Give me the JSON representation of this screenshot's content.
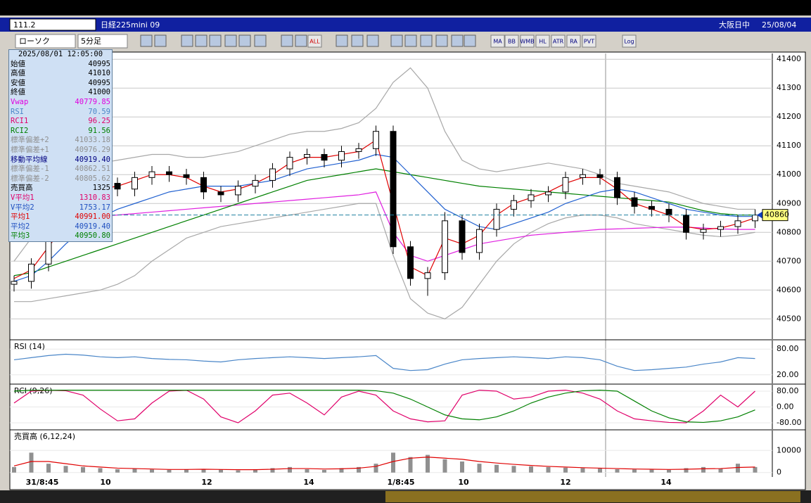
{
  "header": {
    "symbol_box": "111.2",
    "instrument": "日経225mini 09",
    "session": "大阪日中",
    "date": "25/08/04"
  },
  "toolbar": {
    "chart_style": "ローソク",
    "interval": "5分足",
    "buttons": [
      "ALL",
      "MA",
      "BB",
      "WMB",
      "HL",
      "ATR",
      "RA",
      "PVT",
      "Log"
    ]
  },
  "info_panel": {
    "datetime": "2025/08/01  12:05:00",
    "rows": [
      {
        "label": "始値",
        "value": "40995",
        "color": "#000000"
      },
      {
        "label": "高値",
        "value": "41010",
        "color": "#000000"
      },
      {
        "label": "安値",
        "value": "40995",
        "color": "#000000"
      },
      {
        "label": "終値",
        "value": "41000",
        "color": "#000000"
      },
      {
        "label": "Vwap",
        "value": "40779.85",
        "color": "#e000e0"
      },
      {
        "label": "RSI",
        "value": "70.59",
        "color": "#4a86c8"
      },
      {
        "label": "RCI1",
        "value": "96.25",
        "color": "#e0006a"
      },
      {
        "label": "RCI2",
        "value": "91.56",
        "color": "#008000"
      },
      {
        "label": "標準偏差+2",
        "value": "41033.18",
        "color": "#909090"
      },
      {
        "label": "標準偏差+1",
        "value": "40976.29",
        "color": "#909090"
      },
      {
        "label": "移動平均線",
        "value": "40919.40",
        "color": "#000080"
      },
      {
        "label": "標準偏差-1",
        "value": "40862.51",
        "color": "#909090"
      },
      {
        "label": "標準偏差-2",
        "value": "40805.62",
        "color": "#909090"
      },
      {
        "label": "売買高",
        "value": "1325",
        "color": "#000000"
      },
      {
        "label": "V平均1",
        "value": "1310.83",
        "color": "#e0006a"
      },
      {
        "label": "V平均2",
        "value": "1753.17",
        "color": "#2050c0"
      },
      {
        "label": "平均1",
        "value": "40991.00",
        "color": "#e00000"
      },
      {
        "label": "平均2",
        "value": "40919.40",
        "color": "#2050c0"
      },
      {
        "label": "平均3",
        "value": "40950.80",
        "color": "#008000"
      }
    ]
  },
  "time_axis": [
    "31/8:45",
    "10",
    "12",
    "14",
    "1/8:45",
    "10",
    "12",
    "14"
  ],
  "chart_data": [
    {
      "type": "candlestick",
      "ylim": [
        40430,
        41420
      ],
      "yticks": [
        40500,
        40600,
        40700,
        40800,
        40900,
        41000,
        41100,
        41200,
        41300,
        41400
      ],
      "grid": true,
      "last": 40860,
      "open": [
        40620,
        40630,
        40690,
        40800,
        40870,
        40940,
        40970,
        40950,
        40990,
        41010,
        41000,
        40990,
        40940,
        40930,
        40960,
        40980,
        41020,
        41060,
        41070,
        41050,
        41080,
        41090,
        41150,
        40750,
        40640,
        40660,
        40840,
        40730,
        40810,
        40880,
        40910,
        40930,
        40940,
        40990,
        41000,
        40990,
        40920,
        40890,
        40880,
        40860,
        40800,
        40810,
        40820,
        40840
      ],
      "high": [
        40650,
        40710,
        40820,
        40890,
        40960,
        40990,
        40990,
        41010,
        41030,
        41030,
        41020,
        41010,
        40960,
        40980,
        41000,
        41040,
        41080,
        41090,
        41090,
        41100,
        41110,
        41170,
        41170,
        40770,
        40680,
        40870,
        40860,
        40830,
        40900,
        40930,
        40950,
        40960,
        41010,
        41020,
        41020,
        41010,
        40940,
        40910,
        40900,
        40880,
        40830,
        40840,
        40860,
        40880
      ],
      "low": [
        40595,
        40605,
        40665,
        40775,
        40845,
        40915,
        40925,
        40925,
        40965,
        40975,
        40965,
        40915,
        40905,
        40905,
        40935,
        40955,
        40995,
        41035,
        41025,
        41025,
        41055,
        41065,
        40725,
        40615,
        40580,
        40635,
        40705,
        40705,
        40785,
        40855,
        40885,
        40905,
        40915,
        40965,
        40965,
        40895,
        40865,
        40855,
        40835,
        40775,
        40775,
        40785,
        40795,
        40815
      ],
      "close": [
        40630,
        40690,
        40800,
        40870,
        40940,
        40970,
        40950,
        40990,
        41010,
        41000,
        40990,
        40940,
        40930,
        40960,
        40980,
        41020,
        41060,
        41070,
        41050,
        41080,
        41090,
        41150,
        40750,
        40640,
        40660,
        40840,
        40730,
        40810,
        40880,
        40910,
        40930,
        40940,
        40990,
        41000,
        40990,
        40920,
        40890,
        40880,
        40860,
        40800,
        40810,
        40820,
        40840,
        40860
      ],
      "series": [
        {
          "color": "#a8a8a8",
          "values": [
            40700,
            40780,
            40900,
            40980,
            41020,
            41040,
            41050,
            41060,
            41070,
            41070,
            41060,
            41060,
            41070,
            41080,
            41100,
            41120,
            41140,
            41150,
            41150,
            41160,
            41180,
            41230,
            41320,
            41370,
            41300,
            41150,
            41050,
            41020,
            41010,
            41020,
            41030,
            41040,
            41030,
            41020,
            41000,
            40970,
            40960,
            40950,
            40940,
            40920,
            40900,
            40890,
            40880,
            40880
          ]
        },
        {
          "color": "#a8a8a8",
          "values": [
            40560,
            40560,
            40570,
            40580,
            40590,
            40600,
            40620,
            40650,
            40700,
            40740,
            40780,
            40800,
            40820,
            40830,
            40840,
            40850,
            40860,
            40870,
            40880,
            40890,
            40900,
            40900,
            40720,
            40570,
            40520,
            40500,
            40540,
            40620,
            40700,
            40760,
            40800,
            40830,
            40850,
            40860,
            40860,
            40850,
            40830,
            40820,
            40810,
            40800,
            40790,
            40785,
            40790,
            40800
          ]
        },
        {
          "color": "#e020e0",
          "values": [
            40800,
            40820,
            40830,
            40840,
            40850,
            40855,
            40860,
            40865,
            40870,
            40875,
            40880,
            40885,
            40890,
            40895,
            40900,
            40905,
            40910,
            40915,
            40920,
            40925,
            40930,
            40940,
            40800,
            40720,
            40700,
            40720,
            40740,
            40760,
            40770,
            40780,
            40790,
            40795,
            40800,
            40805,
            40810,
            40812,
            40814,
            40816,
            40818,
            40818,
            40815,
            40812,
            40810,
            40810
          ]
        },
        {
          "color": "#008000",
          "values": [
            40650,
            40660,
            40680,
            40700,
            40720,
            40740,
            40760,
            40780,
            40800,
            40820,
            40840,
            40860,
            40880,
            40900,
            40920,
            40940,
            40960,
            40980,
            40990,
            41000,
            41010,
            41020,
            41010,
            41000,
            40990,
            40980,
            40970,
            40960,
            40955,
            40950,
            40945,
            40940,
            40935,
            40930,
            40925,
            40920,
            40915,
            40910,
            40905,
            40890,
            40875,
            40865,
            40860,
            40860
          ]
        },
        {
          "color": "#2060d0",
          "values": [
            40630,
            40650,
            40700,
            40760,
            40810,
            40850,
            40880,
            40900,
            40920,
            40940,
            40950,
            40960,
            40960,
            40960,
            40970,
            40980,
            41000,
            41020,
            41030,
            41040,
            41050,
            41070,
            41060,
            41000,
            40940,
            40880,
            40850,
            40820,
            40810,
            40830,
            40850,
            40870,
            40900,
            40920,
            40940,
            40950,
            40940,
            40920,
            40900,
            40880,
            40870,
            40860,
            40855,
            40855
          ]
        },
        {
          "color": "#e00000",
          "values": [
            40640,
            40670,
            40750,
            40830,
            40900,
            40950,
            40960,
            40980,
            41000,
            41000,
            40990,
            40960,
            40940,
            40950,
            40970,
            41000,
            41040,
            41060,
            41060,
            41070,
            41080,
            41120,
            40900,
            40680,
            40650,
            40780,
            40760,
            40790,
            40860,
            40900,
            40920,
            40940,
            40970,
            40990,
            40990,
            40950,
            40900,
            40880,
            40860,
            40820,
            40810,
            40815,
            40830,
            40850
          ]
        }
      ]
    },
    {
      "type": "line",
      "title": "RSI (14)",
      "ylim": [
        0,
        100
      ],
      "yticks": [
        {
          "value": 80,
          "label": "80.00"
        },
        {
          "value": 20,
          "label": "20.00"
        }
      ],
      "series": [
        {
          "color": "#4a86c8",
          "values": [
            55,
            60,
            65,
            68,
            66,
            62,
            60,
            62,
            58,
            56,
            55,
            52,
            50,
            55,
            58,
            60,
            62,
            60,
            58,
            60,
            62,
            65,
            35,
            30,
            32,
            45,
            55,
            58,
            60,
            62,
            60,
            58,
            62,
            60,
            55,
            40,
            30,
            32,
            35,
            38,
            45,
            50,
            60,
            58
          ]
        }
      ]
    },
    {
      "type": "line",
      "title": "RCI (9,26)",
      "ylim": [
        -112,
        112
      ],
      "yticks": [
        {
          "value": 80,
          "label": "80.00"
        },
        {
          "value": 0,
          "label": "0.00"
        },
        {
          "value": -80,
          "label": "-80.00"
        }
      ],
      "series": [
        {
          "color": "#e0006a",
          "values": [
            20,
            80,
            85,
            82,
            60,
            -10,
            -70,
            -60,
            20,
            80,
            85,
            40,
            -50,
            -80,
            -20,
            60,
            70,
            20,
            -40,
            50,
            80,
            60,
            -20,
            -60,
            -75,
            -70,
            60,
            85,
            80,
            40,
            50,
            80,
            85,
            70,
            40,
            -20,
            -60,
            -70,
            -78,
            -80,
            -20,
            60,
            0,
            80
          ]
        },
        {
          "color": "#008000",
          "values": [
            80,
            85,
            85,
            85,
            85,
            85,
            85,
            85,
            85,
            85,
            85,
            85,
            85,
            85,
            85,
            85,
            85,
            85,
            85,
            85,
            85,
            82,
            70,
            40,
            0,
            -40,
            -60,
            -65,
            -50,
            -20,
            20,
            50,
            70,
            82,
            85,
            80,
            30,
            -20,
            -55,
            -75,
            -78,
            -70,
            -50,
            -15
          ]
        }
      ]
    },
    {
      "type": "bar",
      "title": "売買高 (6,12,24)",
      "ylim": [
        -2000,
        19000
      ],
      "yticks": [
        10000,
        0
      ],
      "color": "#909090",
      "values": [
        2500,
        9000,
        4000,
        3000,
        2500,
        2000,
        1500,
        1800,
        1400,
        1200,
        1500,
        1600,
        1300,
        1000,
        1400,
        2000,
        2500,
        1500,
        1200,
        2000,
        2500,
        4000,
        9000,
        7000,
        8000,
        6000,
        5000,
        4000,
        3500,
        3000,
        2800,
        2500,
        2200,
        2000,
        1800,
        1500,
        1400,
        1300,
        1200,
        2000,
        2500,
        1800,
        4000,
        2500
      ],
      "series": [
        {
          "color": "#e00000",
          "values": [
            3000,
            5000,
            5000,
            4000,
            3000,
            2500,
            2000,
            1800,
            1600,
            1400,
            1400,
            1500,
            1400,
            1300,
            1300,
            1500,
            1800,
            1800,
            1600,
            1700,
            2000,
            2800,
            5000,
            6500,
            7000,
            6500,
            6000,
            5000,
            4300,
            3700,
            3200,
            2800,
            2500,
            2200,
            2000,
            1800,
            1600,
            1500,
            1400,
            1500,
            1700,
            1800,
            2300,
            2500
          ]
        }
      ]
    }
  ]
}
